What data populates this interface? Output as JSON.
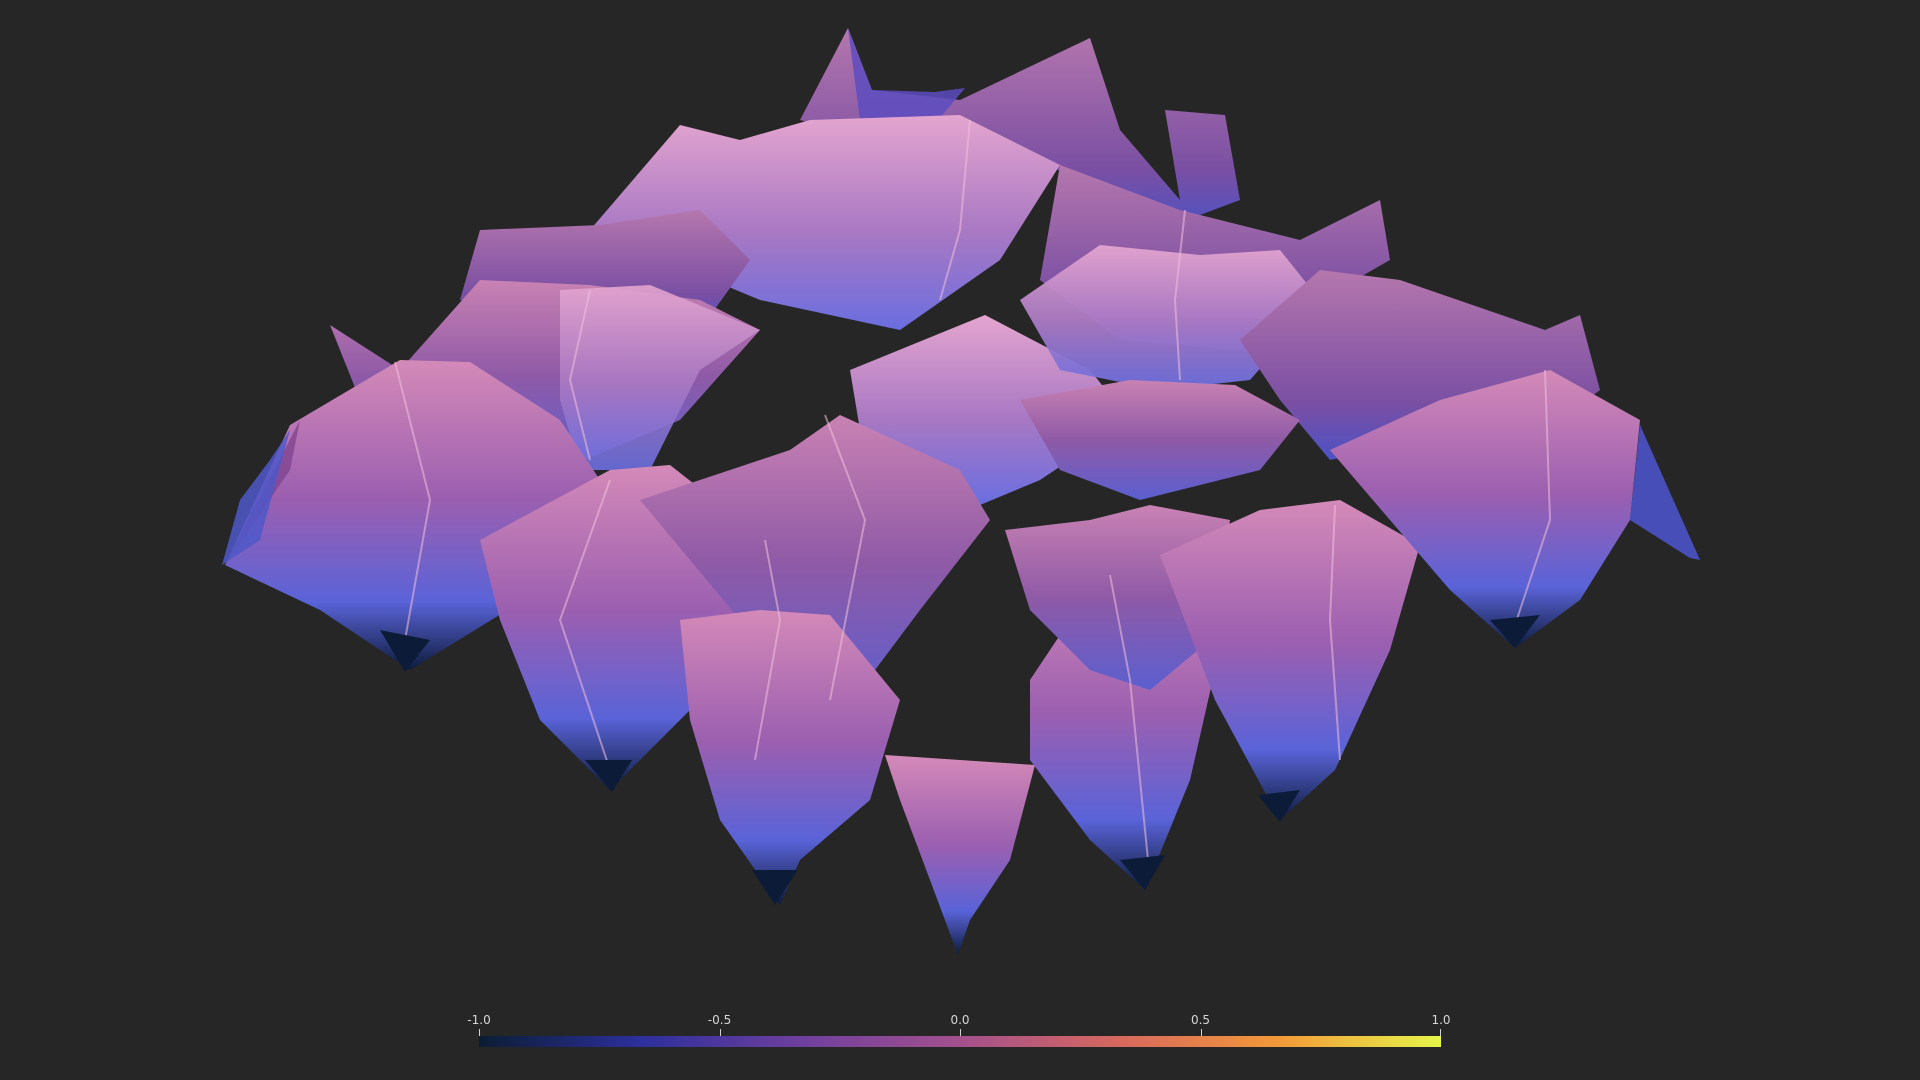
{
  "scene": {
    "background": "#262626",
    "surface_light": "#d48ab8",
    "surface_mid": "#8f5aa6",
    "surface_blue": "#5a63d8",
    "surface_deep": "#0d1c3c",
    "surface_highlight": "#e8a6cd"
  },
  "colorbar": {
    "range": [
      -1.0,
      1.0
    ],
    "colormap": [
      "#0b1d33",
      "#2c2f9c",
      "#6e3f9e",
      "#a4508d",
      "#d7685d",
      "#f39a38",
      "#e6f54a"
    ],
    "ticks": [
      {
        "label": "-1.0"
      },
      {
        "label": "-0.5"
      },
      {
        "label": "0.0"
      },
      {
        "label": "0.5"
      },
      {
        "label": "1.0"
      }
    ]
  }
}
